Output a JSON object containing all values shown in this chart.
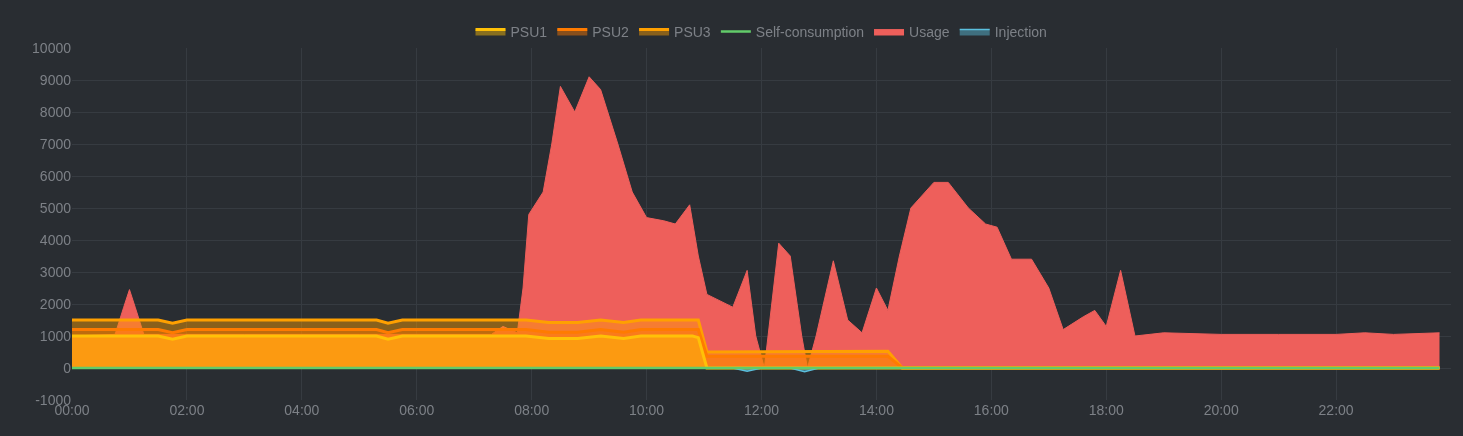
{
  "chart_data": {
    "type": "area",
    "series": [
      {
        "name": "PSU1",
        "color": "#ffc107",
        "x": [
          0,
          1.5,
          1.75,
          2,
          5.3,
          5.5,
          5.75,
          7.9,
          8.3,
          8.8,
          9.2,
          9.6,
          9.9,
          10.8,
          10.9,
          11.05,
          14.2,
          14.45,
          23.8
        ],
        "values": [
          1000,
          1000,
          900,
          1000,
          1000,
          900,
          1000,
          1000,
          920,
          920,
          1000,
          920,
          1000,
          1000,
          950,
          0,
          0,
          0,
          0
        ]
      },
      {
        "name": "PSU2",
        "color": "#ff7b00",
        "x": [
          0,
          1.5,
          1.75,
          2,
          5.3,
          5.5,
          5.75,
          7.9,
          8.3,
          8.8,
          9.2,
          9.6,
          9.9,
          10.8,
          10.9,
          11.05,
          14.2,
          14.45,
          23.8
        ],
        "values": [
          1200,
          1200,
          1100,
          1200,
          1200,
          1100,
          1200,
          1200,
          1120,
          1120,
          1200,
          1120,
          1200,
          1200,
          1200,
          370,
          370,
          0,
          0
        ]
      },
      {
        "name": "PSU3",
        "color": "#ffa000",
        "x": [
          0,
          1.5,
          1.75,
          2,
          5.3,
          5.5,
          5.75,
          7.9,
          8.3,
          8.8,
          9.2,
          9.6,
          9.9,
          10.8,
          10.9,
          11.05,
          14.2,
          14.45,
          23.8
        ],
        "values": [
          1500,
          1500,
          1400,
          1500,
          1500,
          1400,
          1500,
          1500,
          1420,
          1420,
          1500,
          1420,
          1500,
          1500,
          1500,
          500,
          520,
          0,
          0
        ]
      },
      {
        "name": "Self-consumption",
        "type": "line",
        "color": "#62cb6a",
        "x": [
          0,
          23.8
        ],
        "values": [
          0,
          0
        ]
      },
      {
        "name": "Usage",
        "color": "#ee5f5b",
        "x": [
          0,
          0.75,
          0.9,
          1.0,
          1.1,
          1.25,
          3,
          5,
          7.3,
          7.5,
          7.75,
          7.85,
          7.95,
          8.2,
          8.35,
          8.5,
          8.75,
          9.0,
          9.2,
          9.5,
          9.75,
          10.0,
          10.3,
          10.5,
          10.75,
          10.9,
          11.05,
          11.5,
          11.75,
          11.9,
          12.05,
          12.3,
          12.5,
          12.7,
          12.8,
          12.95,
          13.25,
          13.5,
          13.75,
          14.0,
          14.2,
          14.4,
          14.6,
          15.0,
          15.25,
          15.6,
          15.9,
          16.1,
          16.35,
          16.7,
          17.0,
          17.25,
          17.6,
          17.8,
          18.0,
          18.25,
          18.5,
          19,
          20,
          21,
          22,
          22.5,
          23,
          23.8
        ],
        "values": [
          1000,
          1050,
          1900,
          2450,
          1900,
          1050,
          1050,
          1050,
          1050,
          1300,
          1100,
          2500,
          4800,
          5500,
          7000,
          8800,
          8000,
          9100,
          8700,
          7000,
          5500,
          4700,
          4600,
          4500,
          5100,
          3500,
          2300,
          1900,
          3050,
          1000,
          0,
          3900,
          3500,
          1000,
          0,
          1000,
          3350,
          1500,
          1100,
          2500,
          1800,
          3500,
          5000,
          5800,
          5800,
          5000,
          4500,
          4400,
          3400,
          3400,
          2500,
          1200,
          1600,
          1800,
          1300,
          3050,
          1000,
          1100,
          1050,
          1050,
          1050,
          1100,
          1050,
          1100
        ]
      },
      {
        "name": "Injection",
        "color": "#5bc0de",
        "x": [
          11.5,
          11.75,
          12.0,
          12.5,
          12.75,
          13.0
        ],
        "values": [
          0,
          -100,
          0,
          0,
          -120,
          0
        ]
      }
    ],
    "xlim": [
      0,
      24
    ],
    "xticks": [
      {
        "value": 0,
        "label": "00:00"
      },
      {
        "value": 2,
        "label": "02:00"
      },
      {
        "value": 4,
        "label": "04:00"
      },
      {
        "value": 6,
        "label": "06:00"
      },
      {
        "value": 8,
        "label": "08:00"
      },
      {
        "value": 10,
        "label": "10:00"
      },
      {
        "value": 12,
        "label": "12:00"
      },
      {
        "value": 14,
        "label": "14:00"
      },
      {
        "value": 16,
        "label": "16:00"
      },
      {
        "value": 18,
        "label": "18:00"
      },
      {
        "value": 20,
        "label": "20:00"
      },
      {
        "value": 22,
        "label": "22:00"
      }
    ],
    "ylim": [
      -1000,
      10000
    ],
    "yticks": [
      -1000,
      0,
      1000,
      2000,
      3000,
      4000,
      5000,
      6000,
      7000,
      8000,
      9000,
      10000
    ],
    "grid": true,
    "legend": "top",
    "marker": "none"
  }
}
